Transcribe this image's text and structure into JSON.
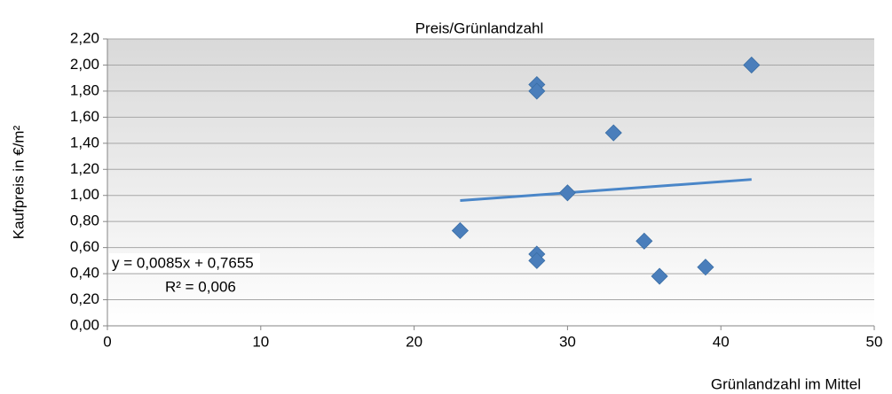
{
  "chart_data": {
    "type": "scatter",
    "title": "Preis/Grünlandzahl",
    "x_label": "Grünlandzahl im Mittel",
    "y_label": "Kaufpreis in €/m²",
    "x": [
      23,
      28,
      28,
      28,
      28,
      30,
      33,
      35,
      36,
      39,
      42
    ],
    "series": [
      {
        "name": "Kaufpreis",
        "color": "#4a7ebb",
        "values": [
          0.73,
          1.85,
          1.8,
          0.55,
          0.5,
          1.02,
          1.48,
          0.65,
          0.38,
          0.45,
          2.0
        ]
      }
    ],
    "trendline": {
      "color": "#4a86c8",
      "slope": 0.0085,
      "intercept": 0.7655,
      "x_range": [
        23,
        42
      ],
      "equation": "y = 0,0085x + 0,7655",
      "r2": 0.006,
      "r2_label": "R² = 0,006"
    },
    "xlim": [
      0,
      50
    ],
    "xticks": [
      0,
      10,
      20,
      30,
      40,
      50
    ],
    "ylim": [
      0,
      2.2
    ],
    "yticks": [
      {
        "value": 0,
        "label": "0,00"
      },
      {
        "value": 0.2,
        "label": "0,20"
      },
      {
        "value": 0.4,
        "label": "0,40"
      },
      {
        "value": 0.6,
        "label": "0,60"
      },
      {
        "value": 0.8,
        "label": "0,80"
      },
      {
        "value": 1.0,
        "label": "1,00"
      },
      {
        "value": 1.2,
        "label": "1,20"
      },
      {
        "value": 1.4,
        "label": "1,40"
      },
      {
        "value": 1.6,
        "label": "1,60"
      },
      {
        "value": 1.8,
        "label": "1,80"
      },
      {
        "value": 2.0,
        "label": "2,00"
      },
      {
        "value": 2.2,
        "label": "2,20"
      }
    ],
    "grid": true
  }
}
